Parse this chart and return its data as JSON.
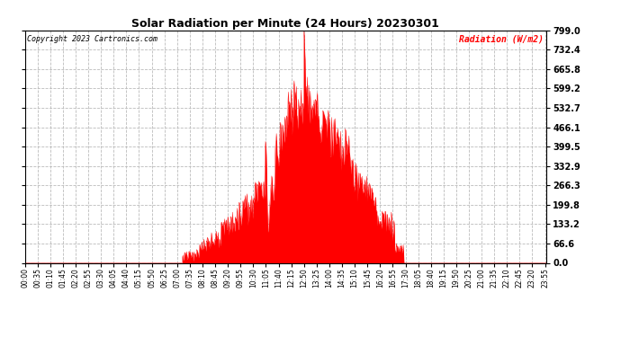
{
  "title": "Solar Radiation per Minute (24 Hours) 20230301",
  "copyright": "Copyright 2023 Cartronics.com",
  "ylabel": "Radiation (W/m2)",
  "ylabel_color": "#ff0000",
  "background_color": "#ffffff",
  "plot_bg_color": "#ffffff",
  "fill_color": "#ff0000",
  "line_color": "#ff0000",
  "grid_color": "#bbbbbb",
  "yticks": [
    0.0,
    66.6,
    133.2,
    199.8,
    266.3,
    332.9,
    399.5,
    466.1,
    532.7,
    599.2,
    665.8,
    732.4,
    799.0
  ],
  "ymax": 799.0,
  "ymin": 0.0,
  "hline_color": "#ff0000",
  "hline_style": "--",
  "figsize": [
    6.9,
    3.75
  ],
  "dpi": 100
}
